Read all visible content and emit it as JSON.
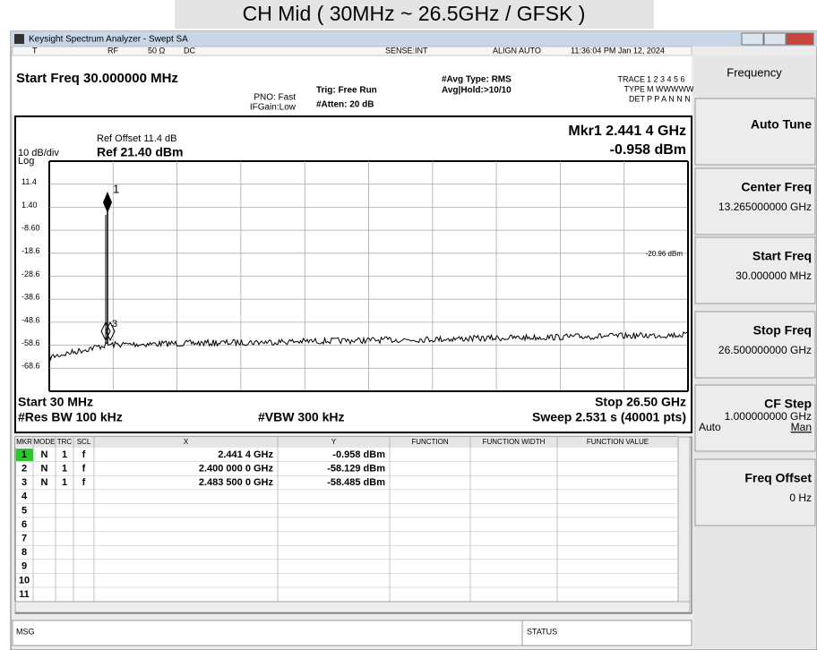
{
  "banner": "CH Mid ( 30MHz ~ 26.5GHz / GFSK )",
  "window_title": "Keysight Spectrum Analyzer - Swept SA",
  "status_bar": {
    "trigger": "T",
    "input": "RF",
    "impedance": "50 Ω",
    "coupling": "DC",
    "sense": "SENSE:INT",
    "align": "ALIGN AUTO",
    "time": "11:36:04 PM Jan 12, 2024"
  },
  "settings": {
    "start_freq": "Start Freq 30.000000 MHz",
    "pno": "PNO: Fast",
    "ifgain": "IFGain:Low",
    "trig": "Trig: Free Run",
    "atten": "#Atten: 20 dB",
    "avg_type": "#Avg Type: RMS",
    "avg_hold": "Avg|Hold:>10/10",
    "trace_label": "TRACE",
    "trace_value": "1 2 3 4 5 6",
    "type_label": "TYPE",
    "type_value": "M WWWWW",
    "det_label": "DET",
    "det_value": "P P A N N N"
  },
  "plot": {
    "ref_offset": "Ref Offset 11.4 dB",
    "scale": "10 dB/div",
    "ref_level": "Ref 21.40 dBm",
    "log": "Log",
    "marker_freq": "Mkr1 2.441 4 GHz",
    "marker_level": "-0.958 dBm",
    "y_labels": [
      "11.4",
      "1.40",
      "-8.60",
      "-18.6",
      "-28.6",
      "-38.6",
      "-48.6",
      "-58.6",
      "-68.6"
    ],
    "display_line": "-20.96 dBm",
    "marker_tags": [
      "1",
      "3"
    ],
    "start": "Start 30 MHz",
    "stop": "Stop 26.50 GHz",
    "rbw": "#Res BW 100 kHz",
    "vbw": "#VBW 300 kHz",
    "sweep": "Sweep  2.531 s (40001 pts)"
  },
  "marker_table": {
    "headers": [
      "MKR",
      "MODE",
      "TRC",
      "SCL",
      "X",
      "Y",
      "FUNCTION",
      "FUNCTION WIDTH",
      "FUNCTION VALUE"
    ],
    "rows": [
      {
        "mkr": "1",
        "mode": "N",
        "trc": "1",
        "scl": "f",
        "x": "2.441 4 GHz",
        "y": "-0.958 dBm"
      },
      {
        "mkr": "2",
        "mode": "N",
        "trc": "1",
        "scl": "f",
        "x": "2.400 000 0 GHz",
        "y": "-58.129 dBm"
      },
      {
        "mkr": "3",
        "mode": "N",
        "trc": "1",
        "scl": "f",
        "x": "2.483 500 0 GHz",
        "y": "-58.485 dBm"
      },
      {
        "mkr": "4"
      },
      {
        "mkr": "5"
      },
      {
        "mkr": "6"
      },
      {
        "mkr": "7"
      },
      {
        "mkr": "8"
      },
      {
        "mkr": "9"
      },
      {
        "mkr": "10"
      },
      {
        "mkr": "11"
      }
    ]
  },
  "softkeys": {
    "menu": "Frequency",
    "items": [
      {
        "label": "Auto Tune"
      },
      {
        "label": "Center Freq",
        "value": "13.265000000 GHz"
      },
      {
        "label": "Start Freq",
        "value": "30.000000 MHz"
      },
      {
        "label": "Stop Freq",
        "value": "26.500000000 GHz"
      },
      {
        "label": "CF Step",
        "value": "1.000000000 GHz",
        "options": [
          "Auto",
          "Man"
        ]
      },
      {
        "label": "Freq Offset",
        "value": "0 Hz"
      }
    ]
  },
  "footer": {
    "msg": "MSG",
    "status": "STATUS"
  }
}
